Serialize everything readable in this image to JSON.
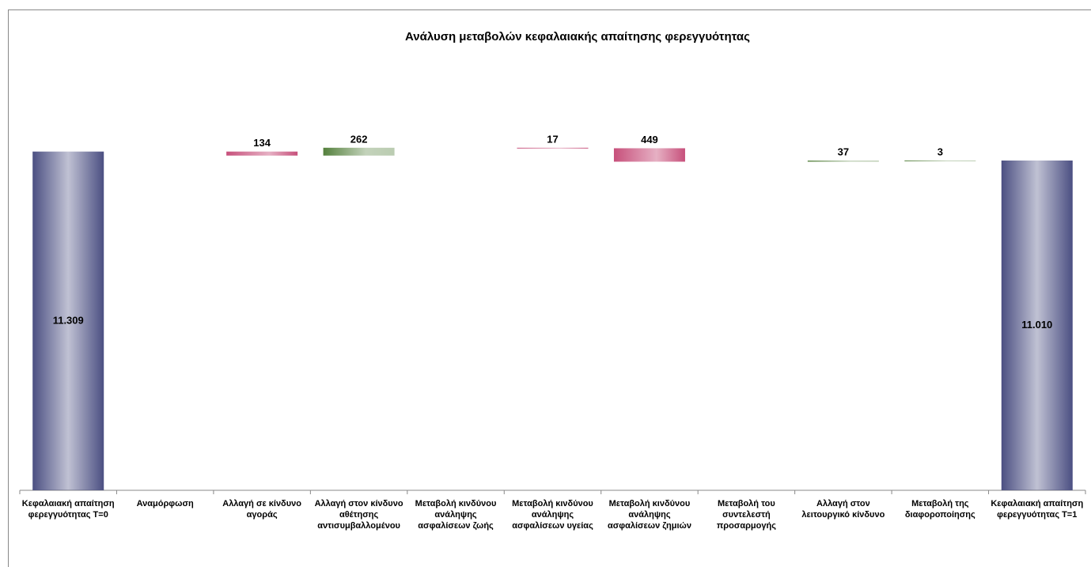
{
  "chart_data": {
    "type": "waterfall",
    "title": "Ανάλυση μεταβολών κεφαλαιακής απαίτησης φερεγγυότητας",
    "categories": [
      "Κεφαλαιακή απαίτηση φερεγγυότητας Τ=0",
      "Αναμόρφωση",
      "Αλλαγή σε κίνδυνο αγοράς",
      "Αλλαγή στον κίνδυνο αθέτησης αντισυμβαλλομένου",
      "Μεταβολή κινδύνου ανάληψης ασφαλίσεων ζωής",
      "Μεταβολή κινδύνου ανάληψης ασφαλίσεων υγείας",
      "Μεταβολή κινδύνου ανάληψης ασφαλίσεων ζημιών",
      "Μεταβολή του συντελεστή προσαρμογής",
      "Αλλαγή στον λειτουργικό κίνδυνο",
      "Μεταβολή της διαφοροποίησης",
      "Κεφαλαιακή απαίτηση φερεγγυότητας Τ=1"
    ],
    "values": [
      11309,
      null,
      -134,
      262,
      null,
      -17,
      -449,
      null,
      37,
      3,
      11010
    ],
    "value_labels": [
      "11.309",
      null,
      "134",
      "262",
      null,
      "17",
      "449",
      null,
      "37",
      "3",
      "11.010"
    ],
    "colors": {
      "total": "#4b4f82",
      "increase": "#54803c",
      "decrease": "#c7507b"
    },
    "ylim": [
      0,
      16000
    ]
  }
}
